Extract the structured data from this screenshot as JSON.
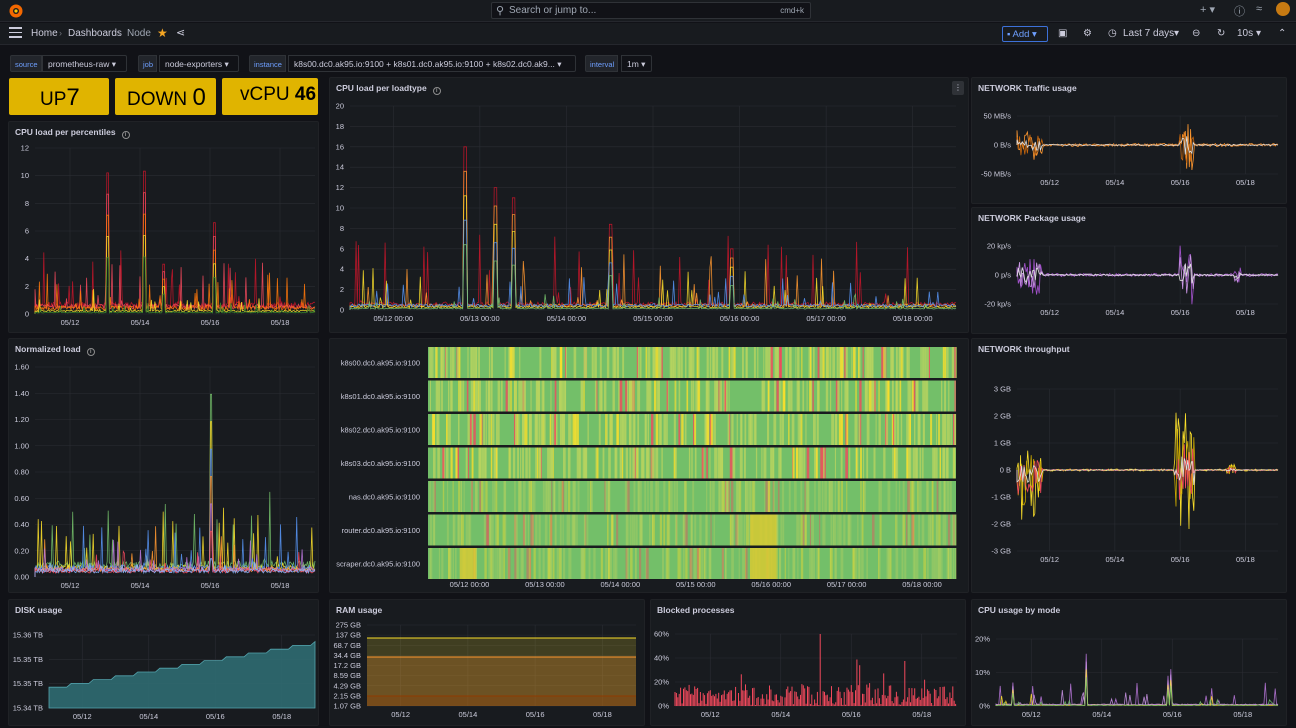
{
  "topbar": {
    "search_placeholder": "Search or jump to...",
    "search_shortcut": "cmd+k"
  },
  "breadcrumb": {
    "home": "Home",
    "dashboards": "Dashboards",
    "current": "Node"
  },
  "toolbar": {
    "add_label": "Add",
    "time_range": "Last 7 days",
    "refresh_interval": "10s"
  },
  "variables": [
    {
      "label": "source",
      "value": "prometheus-raw"
    },
    {
      "label": "job",
      "value": "node-exporters"
    },
    {
      "label": "instance",
      "value": "k8s00.dc0.ak95.io:9100 + k8s01.dc0.ak95.io:9100 + k8s02.dc0.ak9..."
    },
    {
      "label": "interval",
      "value": "1m"
    }
  ],
  "stats": {
    "up_label": "UP",
    "up_value": "7",
    "down_label": "DOWN",
    "down_value": "0",
    "vcpu_label": "vCPU",
    "vcpu_value": "46"
  },
  "colors": {
    "accent": "#6e9fff",
    "stat_bg": "#e0b400",
    "heat_green": "#73bf69",
    "heat_yellow": "#fade2a",
    "heat_red": "#f2495c"
  },
  "panels": {
    "cpu_percentiles": {
      "title": "CPU load per percentiles",
      "y_ticks": [
        "12",
        "10",
        "8",
        "6",
        "4",
        "2",
        "0"
      ],
      "x_ticks": [
        "05/12",
        "05/14",
        "05/16",
        "05/18"
      ]
    },
    "cpu_loadtype": {
      "title": "CPU load per loadtype",
      "y_ticks": [
        "20",
        "18",
        "16",
        "14",
        "12",
        "10",
        "8",
        "6",
        "4",
        "2",
        "0"
      ],
      "x_ticks": [
        "05/12 00:00",
        "05/13 00:00",
        "05/14 00:00",
        "05/15 00:00",
        "05/16 00:00",
        "05/17 00:00",
        "05/18 00:00"
      ]
    },
    "net_traffic": {
      "title": "NETWORK Traffic usage",
      "y_ticks": [
        "50 MB/s",
        "0 B/s",
        "-50 MB/s"
      ],
      "x_ticks": [
        "05/12",
        "05/14",
        "05/16",
        "05/18"
      ]
    },
    "net_package": {
      "title": "NETWORK Package usage",
      "y_ticks": [
        "20 kp/s",
        "0 p/s",
        "-20 kp/s"
      ],
      "x_ticks": [
        "05/12",
        "05/14",
        "05/16",
        "05/18"
      ]
    },
    "normalized": {
      "title": "Normalized load",
      "y_ticks": [
        "1.60",
        "1.40",
        "1.20",
        "1.00",
        "0.80",
        "0.60",
        "0.40",
        "0.20",
        "0.00"
      ],
      "x_ticks": [
        "05/12",
        "05/14",
        "05/16",
        "05/18"
      ]
    },
    "heatmap": {
      "rows": [
        "k8s00.dc0.ak95.io:9100",
        "k8s01.dc0.ak95.io:9100",
        "k8s02.dc0.ak95.io:9100",
        "k8s03.dc0.ak95.io:9100",
        "nas.dc0.ak95.io:9100",
        "router.dc0.ak95.io:9100",
        "scraper.dc0.ak95.io:9100"
      ],
      "x_ticks": [
        "05/12 00:00",
        "05/13 00:00",
        "05/14 00:00",
        "05/15 00:00",
        "05/16 00:00",
        "05/17 00:00",
        "05/18 00:00"
      ]
    },
    "net_throughput": {
      "title": "NETWORK throughput",
      "y_ticks": [
        "3 GB",
        "2 GB",
        "1 GB",
        "0 B",
        "-1 GB",
        "-2 GB",
        "-3 GB"
      ],
      "x_ticks": [
        "05/12",
        "05/14",
        "05/16",
        "05/18"
      ]
    },
    "disk": {
      "title": "DISK usage",
      "y_ticks": [
        "15.36 TB",
        "15.35 TB",
        "15.35 TB",
        "15.34 TB"
      ],
      "x_ticks": [
        "05/12",
        "05/14",
        "05/16",
        "05/18"
      ]
    },
    "ram": {
      "title": "RAM usage",
      "y_ticks": [
        "275 GB",
        "137 GB",
        "68.7 GB",
        "34.4 GB",
        "17.2 GB",
        "8.59 GB",
        "4.29 GB",
        "2.15 GB",
        "1.07 GB"
      ],
      "x_ticks": [
        "05/12",
        "05/14",
        "05/16",
        "05/18"
      ]
    },
    "blocked": {
      "title": "Blocked processes",
      "y_ticks": [
        "60%",
        "40%",
        "20%",
        "0%"
      ],
      "x_ticks": [
        "05/12",
        "05/14",
        "05/16",
        "05/18"
      ]
    },
    "cpu_mode": {
      "title": "CPU usage by mode",
      "y_ticks": [
        "20%",
        "10%",
        "0%"
      ],
      "x_ticks": [
        "05/12",
        "05/14",
        "05/16",
        "05/18"
      ]
    }
  }
}
